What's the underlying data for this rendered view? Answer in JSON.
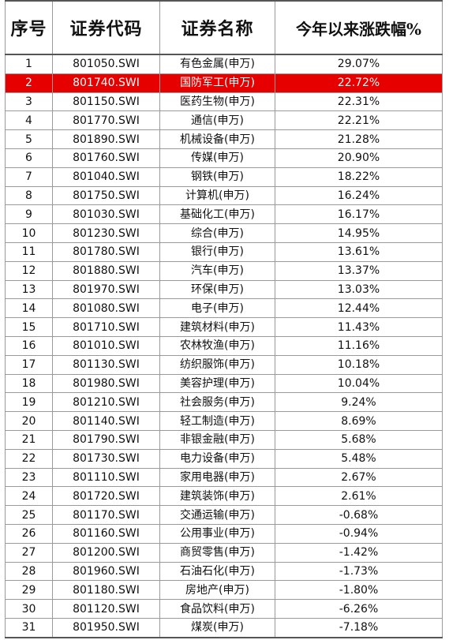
{
  "headers": {
    "index": "序号",
    "code": "证券代码",
    "name": "证券名称",
    "ytd": "今年以来涨跌幅%"
  },
  "highlight_color": "#e60000",
  "rows": [
    {
      "index": "1",
      "code": "801050.SWI",
      "name": "有色金属(申万)",
      "ytd": "29.07%"
    },
    {
      "index": "2",
      "code": "801740.SWI",
      "name": "国防军工(申万)",
      "ytd": "22.72%",
      "highlighted": true
    },
    {
      "index": "3",
      "code": "801150.SWI",
      "name": "医药生物(申万)",
      "ytd": "22.31%"
    },
    {
      "index": "4",
      "code": "801770.SWI",
      "name": "通信(申万)",
      "ytd": "22.21%"
    },
    {
      "index": "5",
      "code": "801890.SWI",
      "name": "机械设备(申万)",
      "ytd": "21.28%"
    },
    {
      "index": "6",
      "code": "801760.SWI",
      "name": "传媒(申万)",
      "ytd": "20.90%"
    },
    {
      "index": "7",
      "code": "801040.SWI",
      "name": "钢铁(申万)",
      "ytd": "18.22%"
    },
    {
      "index": "8",
      "code": "801750.SWI",
      "name": "计算机(申万)",
      "ytd": "16.24%"
    },
    {
      "index": "9",
      "code": "801030.SWI",
      "name": "基础化工(申万)",
      "ytd": "16.17%"
    },
    {
      "index": "10",
      "code": "801230.SWI",
      "name": "综合(申万)",
      "ytd": "14.95%"
    },
    {
      "index": "11",
      "code": "801780.SWI",
      "name": "银行(申万)",
      "ytd": "13.61%"
    },
    {
      "index": "12",
      "code": "801880.SWI",
      "name": "汽车(申万)",
      "ytd": "13.37%"
    },
    {
      "index": "13",
      "code": "801970.SWI",
      "name": "环保(申万)",
      "ytd": "13.03%"
    },
    {
      "index": "14",
      "code": "801080.SWI",
      "name": "电子(申万)",
      "ytd": "12.44%"
    },
    {
      "index": "15",
      "code": "801710.SWI",
      "name": "建筑材料(申万)",
      "ytd": "11.43%"
    },
    {
      "index": "16",
      "code": "801010.SWI",
      "name": "农林牧渔(申万)",
      "ytd": "11.16%"
    },
    {
      "index": "17",
      "code": "801130.SWI",
      "name": "纺织服饰(申万)",
      "ytd": "10.18%"
    },
    {
      "index": "18",
      "code": "801980.SWI",
      "name": "美容护理(申万)",
      "ytd": "10.04%"
    },
    {
      "index": "19",
      "code": "801210.SWI",
      "name": "社会服务(申万)",
      "ytd": "9.24%"
    },
    {
      "index": "20",
      "code": "801140.SWI",
      "name": "轻工制造(申万)",
      "ytd": "8.69%"
    },
    {
      "index": "21",
      "code": "801790.SWI",
      "name": "非银金融(申万)",
      "ytd": "5.68%"
    },
    {
      "index": "22",
      "code": "801730.SWI",
      "name": "电力设备(申万)",
      "ytd": "5.48%"
    },
    {
      "index": "23",
      "code": "801110.SWI",
      "name": "家用电器(申万)",
      "ytd": "2.67%"
    },
    {
      "index": "24",
      "code": "801720.SWI",
      "name": "建筑装饰(申万)",
      "ytd": "2.61%"
    },
    {
      "index": "25",
      "code": "801170.SWI",
      "name": "交通运输(申万)",
      "ytd": "-0.68%"
    },
    {
      "index": "26",
      "code": "801160.SWI",
      "name": "公用事业(申万)",
      "ytd": "-0.94%"
    },
    {
      "index": "27",
      "code": "801200.SWI",
      "name": "商贸零售(申万)",
      "ytd": "-1.42%"
    },
    {
      "index": "28",
      "code": "801960.SWI",
      "name": "石油石化(申万)",
      "ytd": "-1.73%"
    },
    {
      "index": "29",
      "code": "801180.SWI",
      "name": "房地产(申万)",
      "ytd": "-1.80%"
    },
    {
      "index": "30",
      "code": "801120.SWI",
      "name": "食品饮料(申万)",
      "ytd": "-6.26%"
    },
    {
      "index": "31",
      "code": "801950.SWI",
      "name": "煤炭(申万)",
      "ytd": "-7.18%"
    }
  ]
}
